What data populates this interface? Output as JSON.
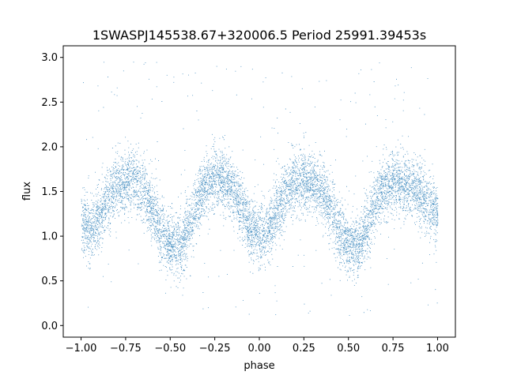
{
  "chart_data": {
    "type": "scatter",
    "title": "1SWASPJ145538.67+320006.5 Period 25991.39453s",
    "xlabel": "phase",
    "ylabel": "flux",
    "xlim": [
      -1.1,
      1.1
    ],
    "ylim": [
      -0.13,
      3.13
    ],
    "x_ticks": [
      -1.0,
      -0.75,
      -0.5,
      -0.25,
      0.0,
      0.25,
      0.5,
      0.75,
      1.0
    ],
    "x_tick_labels": [
      "−1.00",
      "−0.75",
      "−0.50",
      "−0.25",
      "0.00",
      "0.25",
      "0.50",
      "0.75",
      "1.00"
    ],
    "y_ticks": [
      0.0,
      0.5,
      1.0,
      1.5,
      2.0,
      2.5,
      3.0
    ],
    "y_tick_labels": [
      "0.0",
      "0.5",
      "1.0",
      "1.5",
      "2.0",
      "2.5",
      "3.0"
    ],
    "grid": false,
    "marker_color": "#1f77b4",
    "series": [
      {
        "name": "",
        "x_range": [
          -1.0,
          1.0
        ],
        "model_points_x": [
          -1.0,
          -0.95,
          -0.9,
          -0.85,
          -0.8,
          -0.75,
          -0.7,
          -0.65,
          -0.6,
          -0.55,
          -0.5,
          -0.45,
          -0.4,
          -0.35,
          -0.3,
          -0.25,
          -0.2,
          -0.15,
          -0.1,
          -0.05,
          0.0,
          0.05,
          0.1,
          0.15,
          0.2,
          0.25,
          0.3,
          0.35,
          0.4,
          0.45,
          0.5,
          0.55,
          0.6,
          0.65,
          0.7,
          0.75,
          0.8,
          0.85,
          0.9,
          0.95,
          1.0
        ],
        "model_points_y": [
          1.15,
          1.05,
          1.22,
          1.42,
          1.55,
          1.62,
          1.62,
          1.52,
          1.3,
          1.05,
          0.92,
          0.88,
          1.08,
          1.38,
          1.58,
          1.65,
          1.65,
          1.52,
          1.3,
          1.08,
          1.0,
          1.06,
          1.28,
          1.48,
          1.6,
          1.64,
          1.6,
          1.5,
          1.3,
          1.05,
          0.9,
          0.88,
          1.08,
          1.38,
          1.55,
          1.6,
          1.62,
          1.58,
          1.48,
          1.35,
          1.25
        ],
        "scatter_sigma": 0.17,
        "outlier_range": [
          0.1,
          3.0
        ]
      }
    ]
  }
}
